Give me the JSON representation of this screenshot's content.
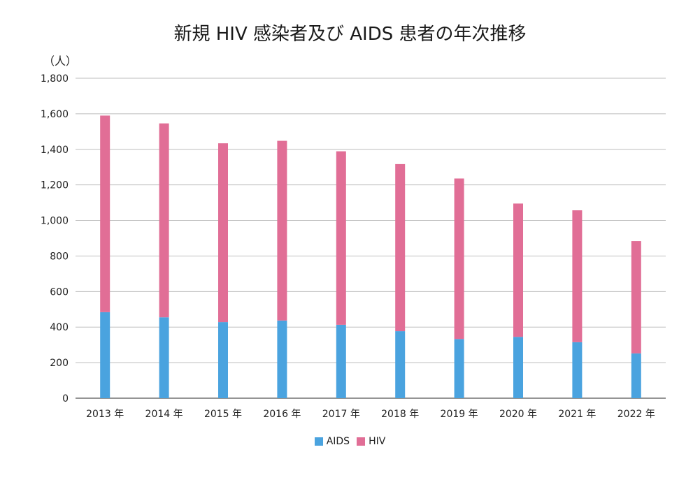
{
  "chart_data": {
    "type": "bar",
    "stacked": true,
    "title": "新規 HIV 感染者及び AIDS 患者の年次推移",
    "ylabel": "（人）",
    "xlabel": "",
    "ylim": [
      0,
      1800
    ],
    "yticks": [
      0,
      200,
      400,
      600,
      800,
      1000,
      1200,
      1400,
      1600,
      1800
    ],
    "ytick_labels": [
      "0",
      "200",
      "400",
      "600",
      "800",
      "1,000",
      "1,200",
      "1,400",
      "1,600",
      "1,800"
    ],
    "grid": true,
    "legend_position": "bottom-center",
    "categories": [
      "2013 年",
      "2014 年",
      "2015 年",
      "2016 年",
      "2017 年",
      "2018 年",
      "2019 年",
      "2020 年",
      "2021 年",
      "2022 年"
    ],
    "series": [
      {
        "name": "AIDS",
        "color": "#4aa3df",
        "values": [
          484,
          455,
          428,
          437,
          413,
          377,
          333,
          345,
          315,
          252
        ]
      },
      {
        "name": "HIV",
        "color": "#e16e96",
        "values": [
          1106,
          1091,
          1006,
          1011,
          976,
          940,
          903,
          750,
          742,
          632
        ]
      }
    ]
  }
}
